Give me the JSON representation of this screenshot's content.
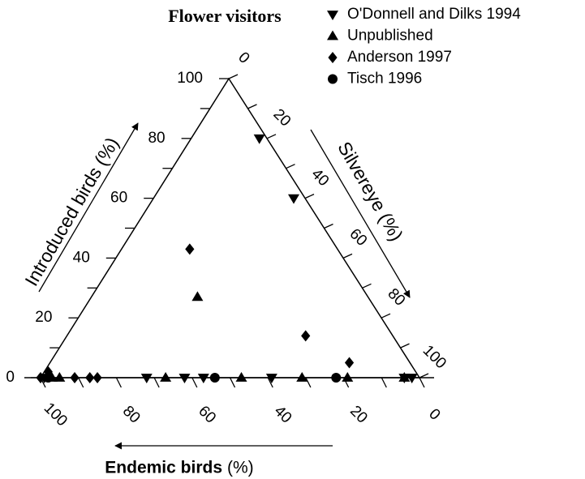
{
  "chart_data": {
    "type": "ternary",
    "title": "Flower visitors",
    "axes": {
      "introduced": {
        "title": "Introduced birds (%)"
      },
      "silvereye": {
        "title": "Silvereye (%)"
      },
      "endemic": {
        "title": "Endemic birds",
        "unit": "(%)"
      }
    },
    "ticks": [
      0,
      20,
      40,
      60,
      80,
      100
    ],
    "minor_ticks": [
      10,
      30,
      50,
      70,
      90
    ],
    "series": [
      {
        "name": "O'Donnell and Dilks 1994",
        "marker": "triangle-down",
        "color": "#000000",
        "points": [
          {
            "introduced": 80,
            "endemic": 2,
            "silvereye": 18
          },
          {
            "introduced": 60,
            "endemic": 3,
            "silvereye": 37
          },
          {
            "introduced": 0,
            "endemic": 99,
            "silvereye": 1
          },
          {
            "introduced": 0,
            "endemic": 72,
            "silvereye": 28
          },
          {
            "introduced": 0,
            "endemic": 62,
            "silvereye": 38
          },
          {
            "introduced": 0,
            "endemic": 57,
            "silvereye": 43
          },
          {
            "introduced": 0,
            "endemic": 39,
            "silvereye": 61
          },
          {
            "introduced": 0,
            "endemic": 4,
            "silvereye": 96
          },
          {
            "introduced": 0,
            "endemic": 2,
            "silvereye": 98
          }
        ]
      },
      {
        "name": "Unpublished",
        "marker": "triangle",
        "color": "#000000",
        "points": [
          {
            "introduced": 27,
            "endemic": 45,
            "silvereye": 28
          },
          {
            "introduced": 0,
            "endemic": 97,
            "silvereye": 3
          },
          {
            "introduced": 0,
            "endemic": 95,
            "silvereye": 5
          },
          {
            "introduced": 0,
            "endemic": 67,
            "silvereye": 33
          },
          {
            "introduced": 0,
            "endemic": 47,
            "silvereye": 53
          },
          {
            "introduced": 0,
            "endemic": 31,
            "silvereye": 69
          },
          {
            "introduced": 0,
            "endemic": 19,
            "silvereye": 81
          },
          {
            "introduced": 0,
            "endemic": 4,
            "silvereye": 96
          }
        ]
      },
      {
        "name": "Anderson 1997",
        "marker": "diamond",
        "color": "#000000",
        "points": [
          {
            "introduced": 43,
            "endemic": 39,
            "silvereye": 18
          },
          {
            "introduced": 14,
            "endemic": 23,
            "silvereye": 63
          },
          {
            "introduced": 5,
            "endemic": 16,
            "silvereye": 79
          },
          {
            "introduced": 0,
            "endemic": 100,
            "silvereye": 0
          },
          {
            "introduced": 2,
            "endemic": 97,
            "silvereye": 1
          },
          {
            "introduced": 0,
            "endemic": 91,
            "silvereye": 9
          },
          {
            "introduced": 0,
            "endemic": 87,
            "silvereye": 13
          },
          {
            "introduced": 0,
            "endemic": 85,
            "silvereye": 15
          }
        ]
      },
      {
        "name": "Tisch 1996",
        "marker": "circle",
        "color": "#000000",
        "points": [
          {
            "introduced": 0,
            "endemic": 98,
            "silvereye": 2
          },
          {
            "introduced": 0,
            "endemic": 54,
            "silvereye": 46
          },
          {
            "introduced": 0,
            "endemic": 22,
            "silvereye": 78
          }
        ]
      }
    ]
  }
}
